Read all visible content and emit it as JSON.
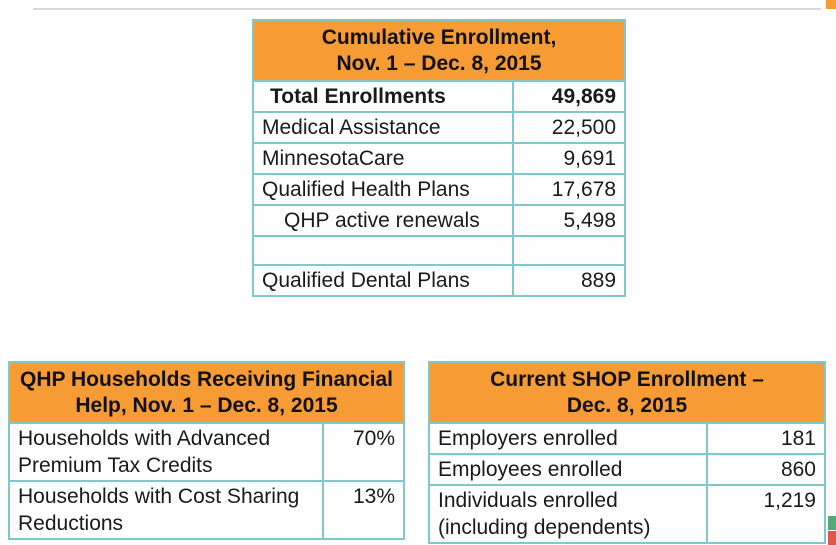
{
  "page": {
    "colors": {
      "accent_orange": "#F79B34",
      "border_teal": "#7FC9CC",
      "top_line_gray": "#D9D9D9",
      "decor_green": "#57A878",
      "decor_red": "#E0584C",
      "text": "#1a1a1a"
    }
  },
  "tables": {
    "cumulative": {
      "title_line1": "Cumulative Enrollment,",
      "title_line2": "Nov. 1 – Dec. 8, 2015",
      "rows": [
        {
          "label": "Total Enrollments",
          "value": "49,869",
          "bold": true
        },
        {
          "label": "Medical Assistance",
          "value": "22,500"
        },
        {
          "label": "MinnesotaCare",
          "value": "9,691"
        },
        {
          "label": "Qualified Health Plans",
          "value": "17,678"
        },
        {
          "label": "QHP active renewals",
          "value": "5,498",
          "indent": true
        },
        {
          "label": "",
          "value": "",
          "empty": true
        },
        {
          "label": "Qualified Dental Plans",
          "value": "889"
        }
      ]
    },
    "financial": {
      "title_line1": "QHP Households Receiving Financial",
      "title_line2": "Help, Nov. 1 – Dec. 8, 2015",
      "rows": [
        {
          "label": "Households with Advanced Premium Tax Credits",
          "value": "70%"
        },
        {
          "label": "Households with Cost Sharing Reductions",
          "value": "13%"
        }
      ]
    },
    "shop": {
      "title_line1": "Current SHOP Enrollment –",
      "title_line2": "Dec. 8, 2015",
      "rows": [
        {
          "label": "Employers enrolled",
          "value": "181"
        },
        {
          "label": "Employees enrolled",
          "value": "860"
        },
        {
          "label": "Individuals enrolled (including dependents)",
          "value": "1,219"
        }
      ]
    }
  }
}
